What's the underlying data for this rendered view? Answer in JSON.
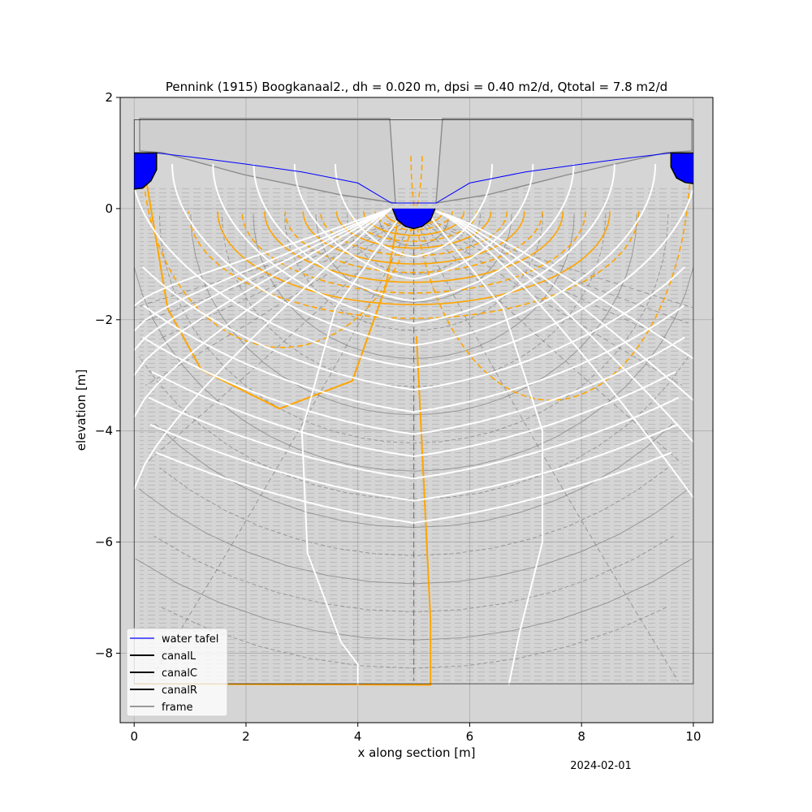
{
  "chart_data": {
    "type": "line",
    "title": "Pennink (1915) Boogkanaal2., dh = 0.020 m, dpsi = 0.40 m2/d, Qtotal = 7.8 m2/d",
    "xlabel": "x along section [m]",
    "ylabel": "elevation [m]",
    "xlim": [
      -0.25,
      10.35
    ],
    "ylim": [
      -9.25,
      2.0
    ],
    "x_ticks": [
      0,
      2,
      4,
      6,
      8,
      10
    ],
    "y_ticks": [
      2,
      0,
      -2,
      -4,
      -6,
      -8
    ],
    "x_tick_labels": [
      "0",
      "2",
      "4",
      "6",
      "8",
      "10"
    ],
    "y_tick_labels": [
      "2",
      "0",
      "−2",
      "−4",
      "−6",
      "−8"
    ],
    "grid": true,
    "background": "photo of Pennink (1915) drawing",
    "legend": {
      "placement": "lower-left"
    },
    "date_stamp": "2024-02-01",
    "series": [
      {
        "name": "water tafel",
        "color": "#0000ff",
        "linewidth": 1,
        "x": [
          0.4,
          1,
          2,
          3,
          4,
          4.6,
          5.4,
          6,
          7,
          8,
          9,
          9.6
        ],
        "y": [
          1.0,
          0.93,
          0.8,
          0.66,
          0.46,
          0.1,
          0.1,
          0.46,
          0.66,
          0.8,
          0.93,
          1.0
        ]
      },
      {
        "name": "canalL",
        "color": "#000000",
        "linewidth": 1.5,
        "x": [
          0,
          0,
          0.4,
          0.4,
          0.3,
          0.15,
          0
        ],
        "y": [
          1.0,
          1.0,
          1.0,
          0.7,
          0.5,
          0.37,
          0.35
        ]
      },
      {
        "name": "canalC",
        "color": "#000000",
        "linewidth": 1.5,
        "x": [
          4.62,
          4.7,
          4.85,
          5.0,
          5.15,
          5.3,
          5.38
        ],
        "y": [
          0,
          -0.2,
          -0.32,
          -0.36,
          -0.32,
          -0.2,
          0
        ]
      },
      {
        "name": "canalR",
        "color": "#000000",
        "linewidth": 1.5,
        "x": [
          10,
          9.85,
          9.7,
          9.6,
          9.6,
          10
        ],
        "y": [
          0.45,
          0.47,
          0.55,
          0.75,
          1.0,
          1.0
        ]
      },
      {
        "name": "frame",
        "color": "#000000",
        "linewidth": 0.6,
        "x": [
          0,
          10,
          10,
          0,
          0
        ],
        "y": [
          1.6,
          1.6,
          -8.55,
          -8.55,
          1.6
        ]
      }
    ]
  }
}
